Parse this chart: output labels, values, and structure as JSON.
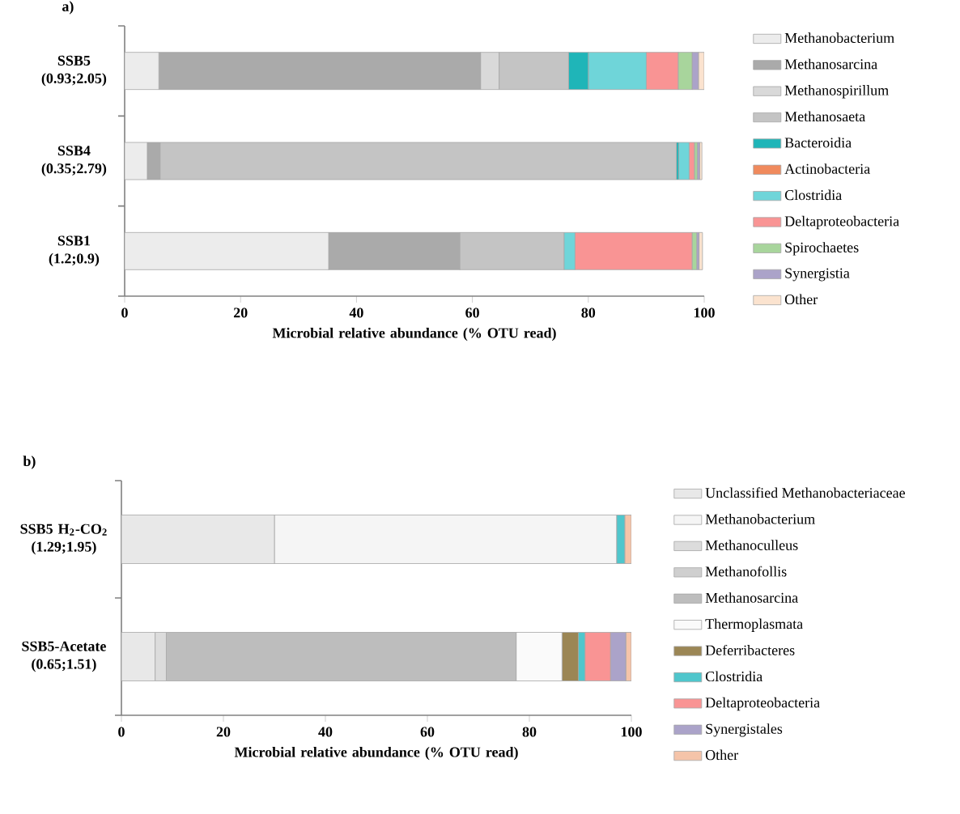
{
  "chart_data": [
    {
      "type": "bar",
      "orientation": "horizontal",
      "stacked": true,
      "title": "a)",
      "xlabel": "Microbial relative abundance (% OTU read)",
      "categories": [
        "SSB5 (0.93;2.05)",
        "SSB4 (0.35;2.79)",
        "SSB1 (1.2;0.9)"
      ],
      "xlim": [
        0,
        100
      ],
      "xticks": [
        0,
        20,
        40,
        60,
        80,
        100
      ],
      "legend": "right",
      "series": [
        {
          "name": "Methanobacterium",
          "color": "#ececec",
          "values": [
            5.9,
            3.9,
            35.2
          ]
        },
        {
          "name": "Methanosarcina",
          "color": "#aaaaaa",
          "values": [
            55.5,
            2.2,
            22.6
          ]
        },
        {
          "name": "Methanospirillum",
          "color": "#d9d9d9",
          "values": [
            3.2,
            0,
            0
          ]
        },
        {
          "name": "Methanosaeta",
          "color": "#c4c4c4",
          "values": [
            12,
            89.1,
            18
          ]
        },
        {
          "name": "Bacteroidia",
          "color": "#1fb5b8",
          "values": [
            3.4,
            0.4,
            0
          ]
        },
        {
          "name": "Actinobacteria",
          "color": "#f08a5d",
          "values": [
            0,
            0,
            0
          ]
        },
        {
          "name": "Clostridia",
          "color": "#6fd5d9",
          "values": [
            10,
            1.8,
            1.9
          ]
        },
        {
          "name": "Deltaproteobacteria",
          "color": "#f99494",
          "values": [
            5.5,
            0.9,
            20.2
          ]
        },
        {
          "name": "Spirochaetes",
          "color": "#a8d59c",
          "values": [
            2.4,
            0.5,
            0.8
          ]
        },
        {
          "name": "Synergistia",
          "color": "#aba3c9",
          "values": [
            1.1,
            0.4,
            0.4
          ]
        },
        {
          "name": "Other",
          "color": "#fbe3cf",
          "values": [
            1.0,
            0.4,
            0.6
          ]
        }
      ]
    },
    {
      "type": "bar",
      "orientation": "horizontal",
      "stacked": true,
      "title": "b)",
      "xlabel": "Microbial relative abundance (% OTU read)",
      "categories": [
        "SSB5 H$_{2}$-CO$_{2}$ (1.29;1.95)",
        "SSB5-Acetate (0.65;1.51)"
      ],
      "xlim": [
        0,
        100
      ],
      "xticks": [
        0,
        20,
        40,
        60,
        80,
        100
      ],
      "legend": "right",
      "series": [
        {
          "name": "Unclassified Methanobacteriaceae",
          "color": "#e8e8e8",
          "values": [
            30,
            6.6
          ]
        },
        {
          "name": "Methanobacterium",
          "color": "#f5f5f5",
          "values": [
            67.1,
            0
          ]
        },
        {
          "name": "Methanoculleus",
          "color": "#dcdcdc",
          "values": [
            0,
            2.2
          ]
        },
        {
          "name": "Methanofollis",
          "color": "#cfcfcf",
          "values": [
            0,
            0
          ]
        },
        {
          "name": "Methanosarcina",
          "color": "#bdbdbd",
          "values": [
            0,
            68.6
          ]
        },
        {
          "name": "Thermoplasmata",
          "color": "#fafafa",
          "values": [
            0,
            9
          ]
        },
        {
          "name": "Deferribacteres",
          "color": "#9b8655",
          "values": [
            0,
            3.2
          ]
        },
        {
          "name": "Clostridia",
          "color": "#4fc6cc",
          "values": [
            1.6,
            1.3
          ]
        },
        {
          "name": "Deltaproteobacteria",
          "color": "#f99494",
          "values": [
            0,
            5
          ]
        },
        {
          "name": "Synergistales",
          "color": "#aba3c9",
          "values": [
            0,
            3
          ]
        },
        {
          "name": "Other",
          "color": "#f5c4a9",
          "values": [
            1.3,
            1.1
          ]
        }
      ]
    }
  ]
}
